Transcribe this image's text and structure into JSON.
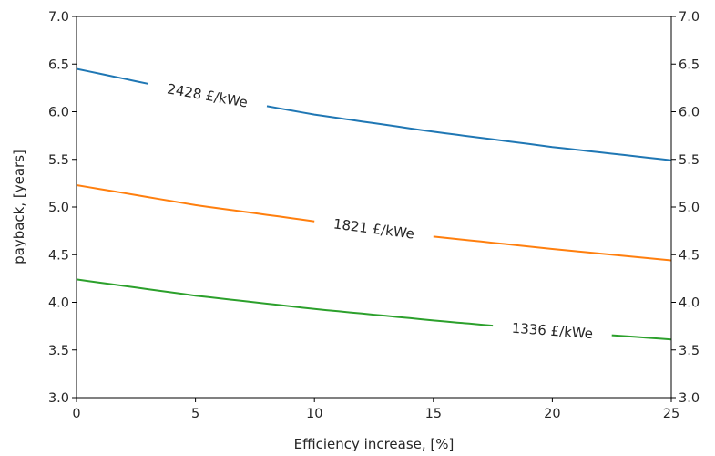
{
  "chart_data": {
    "type": "line",
    "title": "",
    "xlabel": "Efficiency increase, [%]",
    "ylabel": "payback, [years]",
    "xlim": [
      0,
      25
    ],
    "ylim": [
      3.0,
      7.0
    ],
    "xticks": [
      "0",
      "5",
      "10",
      "15",
      "20",
      "25"
    ],
    "yticks": [
      "3.0",
      "3.5",
      "4.0",
      "4.5",
      "5.0",
      "5.5",
      "6.0",
      "6.5",
      "7.0"
    ],
    "grid": false,
    "legend": "none",
    "series": [
      {
        "name": "2428 £/kWe",
        "color": "#1f77b4",
        "x": [
          0,
          5,
          10,
          15,
          20,
          25
        ],
        "y": [
          6.45,
          6.19,
          5.97,
          5.79,
          5.63,
          5.49
        ]
      },
      {
        "name": "1821 £/kWe",
        "color": "#ff7f0e",
        "x": [
          0,
          5,
          10,
          15,
          20,
          25
        ],
        "y": [
          5.23,
          5.02,
          4.85,
          4.69,
          4.56,
          4.44
        ]
      },
      {
        "name": "1336 £/kWe",
        "color": "#2ca02c",
        "x": [
          0,
          5,
          10,
          15,
          20,
          25
        ],
        "y": [
          4.24,
          4.07,
          3.93,
          3.81,
          3.7,
          3.61
        ]
      }
    ]
  }
}
